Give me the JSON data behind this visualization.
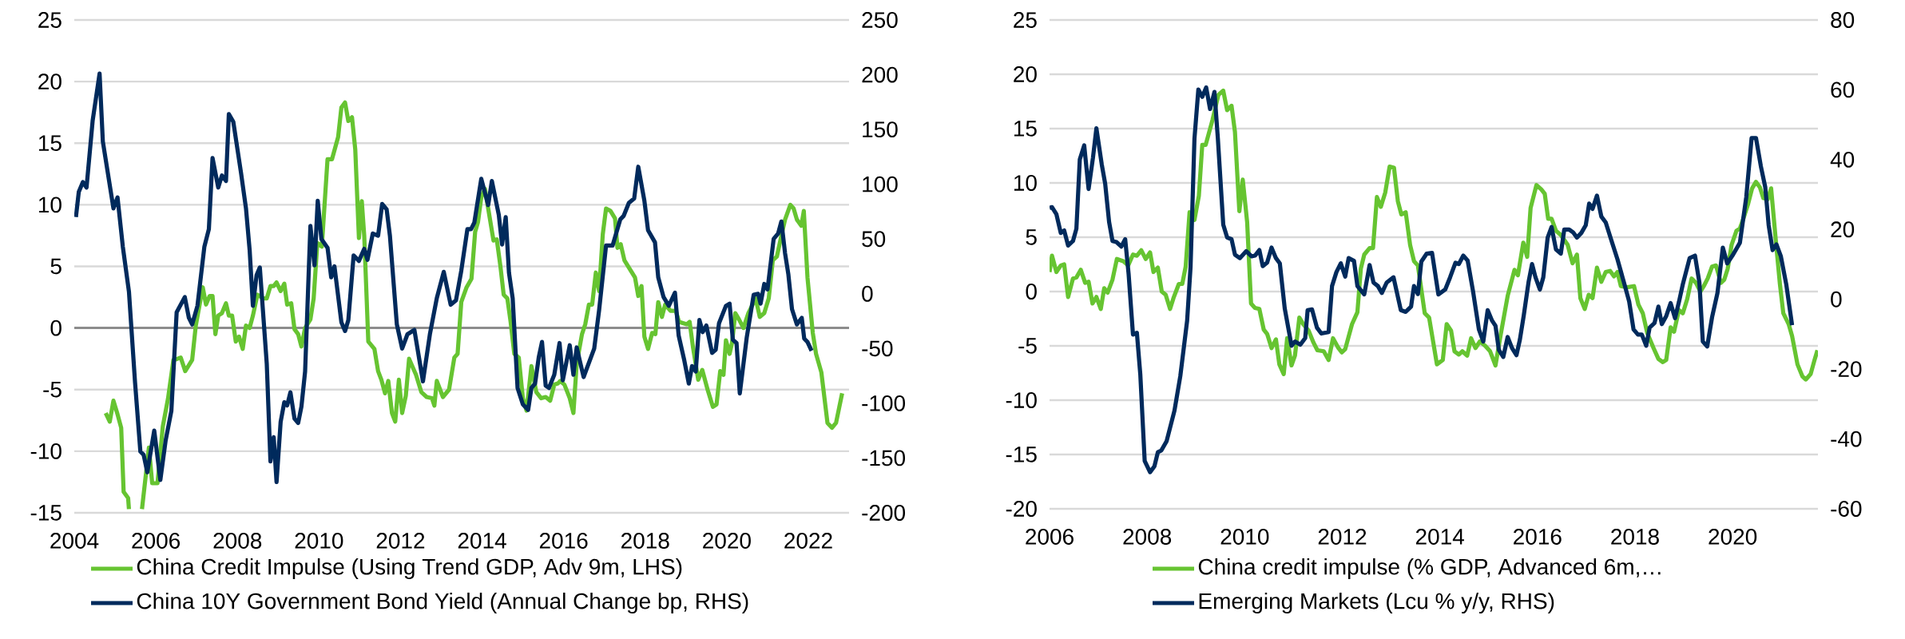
{
  "chart_data": [
    {
      "type": "line",
      "xlim": [
        2004,
        2023
      ],
      "xticks": [
        2004,
        2006,
        2008,
        2010,
        2012,
        2014,
        2016,
        2018,
        2020,
        2022
      ],
      "ylim": [
        -15,
        25
      ],
      "yticks": [
        -15,
        -10,
        -5,
        0,
        5,
        10,
        15,
        20,
        25
      ],
      "y2lim": [
        -200,
        250
      ],
      "y2ticks": [
        -200,
        -150,
        -100,
        -50,
        0,
        50,
        100,
        150,
        200,
        250
      ],
      "grid": "y",
      "legend": "bottom",
      "ref_lines": [
        {
          "axis": "y",
          "value": 0,
          "color": "#8c8c8c"
        }
      ],
      "series": [
        {
          "name": "China Credit Impulse (Using Trend GDP, Adv 9m, LHS)",
          "color": "#66c431",
          "x": [
            2004.77,
            2004.87,
            2004.96,
            2005.06,
            2005.15,
            2005.21,
            2005.32,
            2005.34,
            2005.5,
            2005.66,
            2005.83,
            2005.91,
            2006.04,
            2006.17,
            2006.3,
            2006.43,
            2006.53,
            2006.61,
            2006.72,
            2006.89,
            2006.98,
            2007.15,
            2007.23,
            2007.32,
            2007.39,
            2007.46,
            2007.53,
            2007.62,
            2007.72,
            2007.79,
            2007.87,
            2007.96,
            2008.04,
            2008.13,
            2008.21,
            2008.3,
            2008.38,
            2008.49,
            2008.64,
            2008.72,
            2008.81,
            2008.89,
            2008.96,
            2009.06,
            2009.15,
            2009.22,
            2009.32,
            2009.4,
            2009.49,
            2009.57,
            2009.66,
            2009.79,
            2009.87,
            2009.96,
            2010.07,
            2010.21,
            2010.32,
            2010.47,
            2010.55,
            2010.64,
            2010.72,
            2010.81,
            2010.89,
            2010.98,
            2011.05,
            2011.11,
            2011.21,
            2011.36,
            2011.45,
            2011.53,
            2011.62,
            2011.7,
            2011.79,
            2011.87,
            2011.96,
            2012.04,
            2012.13,
            2012.21,
            2012.38,
            2012.51,
            2012.64,
            2012.77,
            2012.83,
            2012.89,
            2013.04,
            2013.19,
            2013.32,
            2013.4,
            2013.49,
            2013.62,
            2013.74,
            2013.83,
            2013.9,
            2013.98,
            2014.07,
            2014.15,
            2014.28,
            2014.36,
            2014.45,
            2014.53,
            2014.62,
            2014.7,
            2014.79,
            2014.9,
            2015.0,
            2015.09,
            2015.21,
            2015.33,
            2015.45,
            2015.56,
            2015.67,
            2015.77,
            2015.86,
            2015.92,
            2016.02,
            2016.15,
            2016.24,
            2016.32,
            2016.45,
            2016.53,
            2016.62,
            2016.7,
            2016.79,
            2016.87,
            2016.96,
            2017.04,
            2017.15,
            2017.26,
            2017.32,
            2017.4,
            2017.49,
            2017.62,
            2017.75,
            2017.83,
            2017.91,
            2017.98,
            2018.07,
            2018.17,
            2018.25,
            2018.32,
            2018.41,
            2018.49,
            2018.62,
            2018.75,
            2018.83,
            2019.02,
            2019.09,
            2019.17,
            2019.3,
            2019.4,
            2019.53,
            2019.66,
            2019.75,
            2019.84,
            2019.92,
            2019.98,
            2020.07,
            2020.13,
            2020.21,
            2020.3,
            2020.41,
            2020.53,
            2020.71,
            2020.81,
            2020.92,
            2021.03,
            2021.13,
            2021.23,
            2021.34,
            2021.43,
            2021.56,
            2021.64,
            2021.72,
            2021.83,
            2021.89,
            2021.98,
            2022.11,
            2022.19,
            2022.32,
            2022.47,
            2022.58,
            2022.68,
            2022.83
          ],
          "values": [
            -6.9,
            -7.6,
            -5.9,
            -7.0,
            -8.1,
            -13.3,
            -13.8,
            -14.7,
            null,
            -14.7,
            -9.7,
            -12.6,
            -12.6,
            -8.0,
            -5.7,
            -2.6,
            -2.5,
            -2.4,
            -3.5,
            -2.6,
            0.2,
            3.3,
            1.9,
            2.6,
            2.6,
            -0.5,
            1.0,
            1.2,
            2.0,
            1.0,
            1.0,
            -1.1,
            -0.7,
            -1.7,
            0.2,
            0.0,
            1.0,
            2.7,
            2.4,
            2.4,
            3.4,
            3.4,
            3.7,
            3.0,
            3.6,
            1.9,
            2.0,
            -0.1,
            -0.5,
            -1.5,
            0.0,
            0.7,
            2.4,
            6.9,
            6.6,
            13.7,
            13.7,
            15.5,
            17.9,
            18.3,
            16.8,
            17.1,
            14.5,
            7.3,
            10.3,
            7.5,
            -1.1,
            -1.7,
            -3.5,
            -4.2,
            -5.3,
            -4.3,
            -6.9,
            -7.6,
            -4.2,
            -6.9,
            -5.5,
            -2.5,
            -3.8,
            -5.2,
            -5.6,
            -5.7,
            -6.3,
            -4.3,
            -5.6,
            -5.0,
            -2.4,
            -2.1,
            2.1,
            3.3,
            4.0,
            7.8,
            8.6,
            10.6,
            11.3,
            9.7,
            7.1,
            7.2,
            5.0,
            2.7,
            2.4,
            0.5,
            -2.1,
            -2.4,
            -5.7,
            -6.7,
            -3.1,
            -5.2,
            -5.7,
            -5.6,
            -5.9,
            -4.6,
            -4.5,
            -4.3,
            -4.6,
            -5.7,
            -6.9,
            -2.9,
            -0.5,
            0.3,
            1.9,
            1.9,
            4.5,
            3.0,
            7.6,
            9.7,
            9.5,
            8.9,
            6.5,
            6.8,
            5.5,
            4.8,
            4.1,
            2.6,
            3.4,
            -0.7,
            -1.7,
            -0.4,
            -0.5,
            2.1,
            0.9,
            1.9,
            1.4,
            1.4,
            0.5,
            0.3,
            0.5,
            -1.5,
            -4.2,
            -3.4,
            -5.0,
            -6.4,
            -6.2,
            -3.5,
            -3.8,
            -1.0,
            -2.1,
            -1.2,
            1.2,
            0.7,
            0.0,
            1.2,
            2.4,
            0.9,
            1.2,
            2.4,
            5.5,
            5.8,
            7.5,
            8.8,
            10.0,
            9.7,
            8.8,
            8.3,
            9.5,
            4.1,
            -0.4,
            -2.1,
            -3.6,
            -7.7,
            -8.1,
            -7.7,
            -5.3
          ]
        },
        {
          "name": "China 10Y Government Bond Yield (Annual Change bp, RHS)",
          "color": "#002a5c",
          "axis": "y2",
          "x": [
            2004.04,
            2004.11,
            2004.21,
            2004.3,
            2004.45,
            2004.62,
            2004.7,
            2004.96,
            2005.06,
            2005.19,
            2005.34,
            2005.49,
            2005.62,
            2005.7,
            2005.79,
            2005.96,
            2006.11,
            2006.24,
            2006.38,
            2006.51,
            2006.71,
            2006.81,
            2006.89,
            2007.02,
            2007.19,
            2007.3,
            2007.39,
            2007.53,
            2007.62,
            2007.72,
            2007.79,
            2007.9,
            2008.09,
            2008.21,
            2008.3,
            2008.38,
            2008.47,
            2008.55,
            2008.72,
            2008.81,
            2008.89,
            2008.96,
            2009.06,
            2009.15,
            2009.22,
            2009.3,
            2009.4,
            2009.49,
            2009.57,
            2009.66,
            2009.79,
            2009.89,
            2009.97,
            2010.06,
            2010.21,
            2010.3,
            2010.38,
            2010.55,
            2010.64,
            2010.72,
            2010.85,
            2010.98,
            2011.11,
            2011.19,
            2011.32,
            2011.45,
            2011.55,
            2011.66,
            2011.74,
            2011.91,
            2012.04,
            2012.17,
            2012.34,
            2012.55,
            2012.72,
            2012.89,
            2013.06,
            2013.23,
            2013.36,
            2013.49,
            2013.64,
            2013.73,
            2013.81,
            2013.98,
            2014.15,
            2014.24,
            2014.41,
            2014.49,
            2014.58,
            2014.66,
            2014.75,
            2014.87,
            2015.0,
            2015.13,
            2015.21,
            2015.3,
            2015.39,
            2015.47,
            2015.56,
            2015.64,
            2015.77,
            2015.9,
            2015.98,
            2016.15,
            2016.24,
            2016.32,
            2016.49,
            2016.75,
            2016.87,
            2017.04,
            2017.2,
            2017.39,
            2017.47,
            2017.6,
            2017.73,
            2017.83,
            2017.98,
            2018.07,
            2018.24,
            2018.32,
            2018.45,
            2018.58,
            2018.73,
            2018.82,
            2018.96,
            2019.07,
            2019.15,
            2019.24,
            2019.33,
            2019.41,
            2019.5,
            2019.64,
            2019.73,
            2019.81,
            2019.98,
            2020.07,
            2020.15,
            2020.24,
            2020.32,
            2020.49,
            2020.66,
            2020.77,
            2020.83,
            2020.92,
            2021.0,
            2021.15,
            2021.26,
            2021.34,
            2021.43,
            2021.51,
            2021.6,
            2021.72,
            2021.84,
            2021.9,
            2021.98,
            2022.08
          ],
          "values": [
            70,
            93,
            102,
            97,
            158,
            201,
            139,
            78,
            88,
            43,
            2,
            -81,
            -144,
            -147,
            -163,
            -125,
            -170,
            -134,
            -107,
            -17,
            -3,
            -22,
            -28,
            -11,
            43,
            59,
            124,
            97,
            108,
            103,
            164,
            157,
            110,
            78,
            40,
            -11,
            17,
            24,
            -64,
            -153,
            -131,
            -172,
            -117,
            -99,
            -102,
            -90,
            -114,
            -118,
            -103,
            -71,
            62,
            26,
            85,
            50,
            42,
            15,
            25,
            -26,
            -34,
            -24,
            35,
            30,
            41,
            31,
            55,
            53,
            82,
            77,
            53,
            -28,
            -50,
            -37,
            -33,
            -80,
            -37,
            -4,
            20,
            -10,
            -6,
            21,
            59,
            59,
            65,
            105,
            81,
            103,
            72,
            45,
            70,
            19,
            -4,
            -86,
            -101,
            -106,
            -86,
            -82,
            -58,
            -44,
            -84,
            -86,
            -74,
            -45,
            -79,
            -47,
            -74,
            -49,
            -76,
            -50,
            -15,
            44,
            44,
            68,
            71,
            83,
            87,
            116,
            85,
            58,
            47,
            15,
            -3,
            -11,
            1,
            -38,
            -61,
            -82,
            -66,
            -71,
            -24,
            -35,
            -29,
            -54,
            -51,
            -27,
            -11,
            -9,
            -42,
            -45,
            -91,
            -40,
            -1,
            0,
            -9,
            9,
            4,
            50,
            55,
            66,
            37,
            18,
            -14,
            -28,
            -22,
            -41,
            -44,
            -52
          ]
        }
      ]
    },
    {
      "type": "line",
      "xlim": [
        2006,
        2021.75
      ],
      "xticks": [
        2006,
        2008,
        2010,
        2012,
        2014,
        2016,
        2018,
        2020
      ],
      "ylim": [
        -20,
        25
      ],
      "yticks": [
        -20,
        -15,
        -10,
        -5,
        0,
        5,
        10,
        15,
        20,
        25
      ],
      "y2lim": [
        -60,
        80
      ],
      "y2ticks": [
        -60,
        -40,
        -20,
        0,
        20,
        40,
        60,
        80
      ],
      "grid": "y",
      "legend": "bottom",
      "series": [
        {
          "name": "China credit impulse (% GDP, Advanced 6m,…",
          "color": "#66c431",
          "x": [
            2006.0,
            2006.05,
            2006.14,
            2006.23,
            2006.3,
            2006.38,
            2006.48,
            2006.55,
            2006.64,
            2006.73,
            2006.8,
            2006.88,
            2006.96,
            2007.05,
            2007.12,
            2007.19,
            2007.29,
            2007.38,
            2007.51,
            2007.61,
            2007.71,
            2007.79,
            2007.88,
            2007.97,
            2008.06,
            2008.13,
            2008.22,
            2008.3,
            2008.38,
            2008.47,
            2008.54,
            2008.65,
            2008.72,
            2008.79,
            2008.87,
            2008.97,
            2009.06,
            2009.13,
            2009.2,
            2009.34,
            2009.46,
            2009.56,
            2009.64,
            2009.73,
            2009.8,
            2009.89,
            2009.96,
            2010.05,
            2010.13,
            2010.21,
            2010.3,
            2010.39,
            2010.46,
            2010.55,
            2010.64,
            2010.71,
            2010.8,
            2010.87,
            2010.96,
            2011.03,
            2011.12,
            2011.2,
            2011.31,
            2011.41,
            2011.49,
            2011.62,
            2011.72,
            2011.81,
            2011.92,
            2011.99,
            2012.06,
            2012.2,
            2012.31,
            2012.38,
            2012.45,
            2012.56,
            2012.63,
            2012.71,
            2012.79,
            2012.88,
            2012.97,
            2013.06,
            2013.14,
            2013.21,
            2013.3,
            2013.39,
            2013.47,
            2013.55,
            2013.69,
            2013.78,
            2013.94,
            2014.06,
            2014.14,
            2014.23,
            2014.3,
            2014.39,
            2014.46,
            2014.56,
            2014.64,
            2014.73,
            2014.82,
            2014.93,
            2015.03,
            2015.14,
            2015.25,
            2015.39,
            2015.53,
            2015.6,
            2015.71,
            2015.79,
            2015.86,
            2015.98,
            2016.08,
            2016.15,
            2016.22,
            2016.29,
            2016.38,
            2016.48,
            2016.62,
            2016.72,
            2016.81,
            2016.88,
            2016.97,
            2017.05,
            2017.13,
            2017.22,
            2017.31,
            2017.4,
            2017.49,
            2017.57,
            2017.64,
            2017.71,
            2017.84,
            2017.98,
            2018.07,
            2018.16,
            2018.25,
            2018.38,
            2018.48,
            2018.57,
            2018.64,
            2018.73,
            2018.8,
            2018.9,
            2018.98,
            2019.07,
            2019.16,
            2019.25,
            2019.34,
            2019.41,
            2019.49,
            2019.58,
            2019.66,
            2019.76,
            2019.83,
            2019.9,
            2019.98,
            2020.08,
            2020.15,
            2020.22,
            2020.32,
            2020.4,
            2020.48,
            2020.56,
            2020.63,
            2020.72,
            2020.79,
            2020.89,
            2020.97,
            2021.04,
            2021.15,
            2021.22,
            2021.33,
            2021.43,
            2021.5,
            2021.6,
            2021.68,
            2021.74
          ],
          "values": [
            1.8,
            3.3,
            1.8,
            2.4,
            2.5,
            -0.5,
            1.2,
            1.3,
            2.0,
            0.8,
            0.9,
            -1.1,
            -0.5,
            -1.6,
            0.3,
            -0.1,
            1.1,
            3.0,
            2.8,
            2.4,
            3.4,
            3.3,
            3.8,
            3.0,
            3.6,
            1.8,
            2.2,
            0.0,
            -0.3,
            -1.6,
            -0.6,
            0.7,
            0.7,
            2.3,
            7.3,
            6.6,
            8.8,
            13.5,
            13.5,
            15.8,
            18.1,
            18.5,
            16.7,
            17.1,
            14.7,
            7.4,
            10.3,
            6.4,
            -1.1,
            -1.5,
            -1.6,
            -3.5,
            -3.9,
            -5.2,
            -4.4,
            -6.7,
            -7.6,
            -4.3,
            -6.8,
            -5.9,
            -2.4,
            -3.0,
            -3.6,
            -4.7,
            -5.4,
            -5.5,
            -6.3,
            -4.3,
            -5.2,
            -5.6,
            -5.3,
            -3.0,
            -1.9,
            2.1,
            3.4,
            4.0,
            4.0,
            8.7,
            7.8,
            9.1,
            11.5,
            11.4,
            8.3,
            7.1,
            7.3,
            4.3,
            2.8,
            2.4,
            -2.0,
            -2.4,
            -6.7,
            -6.3,
            -3.0,
            -3.6,
            -5.5,
            -5.8,
            -5.5,
            -5.9,
            -4.3,
            -5.2,
            -4.6,
            -5.0,
            -5.5,
            -6.8,
            -3.9,
            -0.4,
            2.0,
            1.5,
            4.5,
            3.2,
            7.7,
            9.8,
            9.4,
            9.0,
            6.7,
            6.7,
            5.6,
            5.2,
            4.3,
            2.6,
            3.4,
            -0.6,
            -1.6,
            -0.3,
            -0.6,
            2.2,
            0.9,
            1.8,
            1.9,
            1.4,
            1.8,
            0.5,
            0.4,
            0.5,
            -1.2,
            -2.0,
            -3.8,
            -5.2,
            -6.2,
            -6.5,
            -6.3,
            -3.3,
            -3.7,
            -1.7,
            -2.0,
            -0.7,
            1.2,
            0.8,
            0.0,
            0.5,
            1.2,
            2.3,
            2.4,
            0.8,
            1.1,
            2.1,
            4.3,
            5.6,
            5.8,
            6.7,
            8.1,
            9.5,
            10.1,
            9.6,
            8.6,
            8.5,
            9.5,
            4.5,
            0.7,
            -2.0,
            -3.0,
            -4.1,
            -6.7,
            -7.8,
            -8.1,
            -7.6,
            -6.3,
            -5.4
          ]
        },
        {
          "name": "Emerging Markets (Lcu % y/y, RHS)",
          "color": "#002a5c",
          "axis": "y2",
          "x": [
            2006.0,
            2006.05,
            2006.14,
            2006.23,
            2006.3,
            2006.38,
            2006.48,
            2006.55,
            2006.62,
            2006.71,
            2006.8,
            2006.89,
            2006.96,
            2007.07,
            2007.14,
            2007.22,
            2007.29,
            2007.37,
            2007.47,
            2007.55,
            2007.62,
            2007.71,
            2007.79,
            2007.86,
            2007.95,
            2008.06,
            2008.15,
            2008.22,
            2008.29,
            2008.4,
            2008.56,
            2008.68,
            2008.82,
            2008.89,
            2008.97,
            2009.05,
            2009.13,
            2009.21,
            2009.29,
            2009.38,
            2009.45,
            2009.56,
            2009.64,
            2009.73,
            2009.8,
            2009.9,
            2010.03,
            2010.14,
            2010.21,
            2010.3,
            2010.37,
            2010.46,
            2010.55,
            2010.64,
            2010.72,
            2010.82,
            2010.96,
            2011.03,
            2011.14,
            2011.24,
            2011.29,
            2011.38,
            2011.48,
            2011.57,
            2011.72,
            2011.79,
            2011.88,
            2011.97,
            2012.06,
            2012.13,
            2012.24,
            2012.31,
            2012.45,
            2012.56,
            2012.64,
            2012.73,
            2012.81,
            2012.91,
            2013.05,
            2013.2,
            2013.3,
            2013.41,
            2013.47,
            2013.55,
            2013.62,
            2013.73,
            2013.84,
            2013.97,
            2014.11,
            2014.21,
            2014.32,
            2014.39,
            2014.48,
            2014.57,
            2014.68,
            2014.8,
            2014.89,
            2014.98,
            2015.07,
            2015.14,
            2015.21,
            2015.3,
            2015.39,
            2015.48,
            2015.57,
            2015.64,
            2015.72,
            2015.82,
            2015.89,
            2015.96,
            2016.05,
            2016.12,
            2016.21,
            2016.29,
            2016.38,
            2016.48,
            2016.55,
            2016.65,
            2016.73,
            2016.81,
            2016.9,
            2016.99,
            2017.06,
            2017.13,
            2017.22,
            2017.31,
            2017.4,
            2017.52,
            2017.64,
            2017.76,
            2017.88,
            2017.97,
            2018.06,
            2018.14,
            2018.23,
            2018.3,
            2018.4,
            2018.48,
            2018.55,
            2018.64,
            2018.73,
            2018.82,
            2018.9,
            2018.98,
            2019.12,
            2019.23,
            2019.32,
            2019.39,
            2019.48,
            2019.58,
            2019.69,
            2019.8,
            2019.89,
            2020.01,
            2020.15,
            2020.28,
            2020.39,
            2020.48,
            2020.58,
            2020.67,
            2020.74,
            2020.82,
            2020.9,
            2020.99,
            2021.1,
            2021.22
          ],
          "values": [
            26.2,
            26.4,
            24.4,
            19.0,
            19.7,
            15.4,
            16.7,
            20.2,
            40.1,
            44.1,
            31.6,
            40.6,
            49.0,
            38.6,
            33.1,
            22.2,
            16.7,
            16.4,
            15.1,
            17.2,
            7.3,
            -10.1,
            -9.6,
            -21.5,
            -46.3,
            -49.5,
            -47.8,
            -43.8,
            -43.3,
            -40.6,
            -31.9,
            -22.0,
            -6.1,
            9.3,
            46.0,
            60.1,
            58.0,
            60.7,
            54.5,
            59.4,
            46.0,
            21.4,
            17.7,
            17.2,
            12.8,
            11.8,
            13.8,
            12.3,
            12.5,
            14.1,
            9.5,
            10.5,
            14.8,
            11.8,
            10.3,
            -2.6,
            -13.3,
            -12.1,
            -13.0,
            -11.1,
            -3.1,
            -2.9,
            -8.1,
            -9.8,
            -9.4,
            3.8,
            7.8,
            10.3,
            6.5,
            11.8,
            11.0,
            3.8,
            1.4,
            9.8,
            4.8,
            3.8,
            1.8,
            4.8,
            6.3,
            -3.1,
            -3.6,
            -2.1,
            3.8,
            1.5,
            10.8,
            13.1,
            13.3,
            1.4,
            2.8,
            6.3,
            10.5,
            10.1,
            12.5,
            11.1,
            2.3,
            -8.6,
            -12.1,
            -3.1,
            -6.1,
            -7.6,
            -14.5,
            -16.5,
            -10.8,
            -14.0,
            -16.0,
            -11.6,
            -4.6,
            5.1,
            10.1,
            6.3,
            2.8,
            6.3,
            17.7,
            20.7,
            14.3,
            13.1,
            20.0,
            20.0,
            19.2,
            17.7,
            19.0,
            21.2,
            27.4,
            25.9,
            29.7,
            23.7,
            22.0,
            16.7,
            11.5,
            5.5,
            -0.6,
            -8.6,
            -10.1,
            -10.1,
            -13.3,
            -8.1,
            -6.8,
            -2.1,
            -7.1,
            -4.8,
            -1.1,
            -5.4,
            -0.8,
            4.3,
            11.8,
            12.5,
            4.8,
            -12.1,
            -13.5,
            -5.1,
            1.8,
            14.8,
            10.3,
            12.8,
            16.2,
            29.2,
            46.2,
            46.2,
            38.1,
            32.1,
            21.2,
            14.1,
            15.7,
            12.3,
            4.3,
            -7.4
          ]
        }
      ]
    }
  ]
}
